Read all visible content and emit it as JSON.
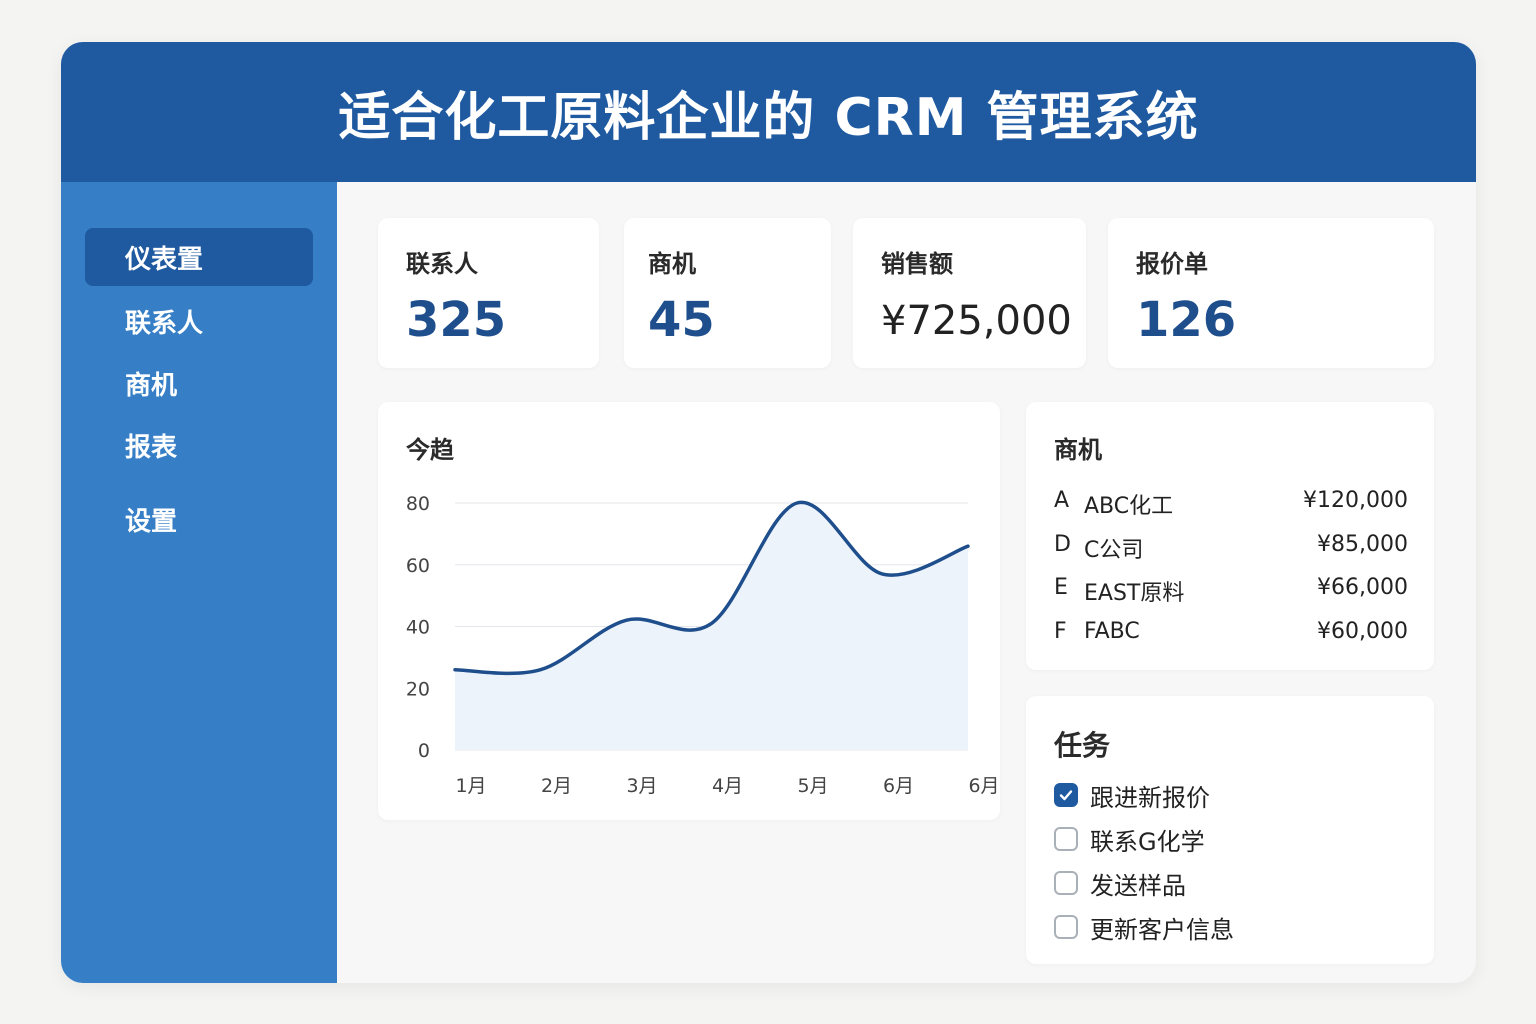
{
  "header": {
    "title": "适合化工原料企业的 CRM  管理系统"
  },
  "sidebar": {
    "items": [
      {
        "label": "仪表置",
        "active": true
      },
      {
        "label": "联系人",
        "active": false
      },
      {
        "label": "商机",
        "active": false
      },
      {
        "label": "报表",
        "active": false
      },
      {
        "label": "设置",
        "active": false
      }
    ]
  },
  "kpis": [
    {
      "label": "联系人",
      "value": "325"
    },
    {
      "label": "商机",
      "value": "45"
    },
    {
      "label": "销售额",
      "value": "¥725,000"
    },
    {
      "label": "报价单",
      "value": "126"
    }
  ],
  "trend": {
    "title": "今趋",
    "chart_data": {
      "type": "area",
      "categories": [
        "1月",
        "2月",
        "3月",
        "4月",
        "5月",
        "6月",
        "6月"
      ],
      "values": [
        26,
        26,
        42,
        41,
        80,
        57,
        66
      ],
      "ylim": [
        0,
        80
      ],
      "yticks": [
        "0",
        "20",
        "40",
        "60",
        "80"
      ],
      "grid": true,
      "line_color": "#1f4e8c",
      "fill_color": "#edf3fb"
    }
  },
  "opportunities": {
    "title": "商机",
    "rows": [
      {
        "letter": "A",
        "name": "ABC化工",
        "amount": "¥120,000"
      },
      {
        "letter": "D",
        "name": "C公司",
        "amount": "¥85,000"
      },
      {
        "letter": "E",
        "name": "EAST原料",
        "amount": "¥66,000"
      },
      {
        "letter": "F",
        "name": "FABC",
        "amount": "¥60,000"
      }
    ]
  },
  "tasks": {
    "title": "任务",
    "items": [
      {
        "label": "跟进新报价",
        "checked": true
      },
      {
        "label": "联系G化学",
        "checked": false
      },
      {
        "label": "发送样品",
        "checked": false
      },
      {
        "label": "更新客户信息",
        "checked": false
      }
    ]
  },
  "colors": {
    "header": "#1f5aa1",
    "sidebar": "#367fc6",
    "accent": "#1f4e8c"
  }
}
